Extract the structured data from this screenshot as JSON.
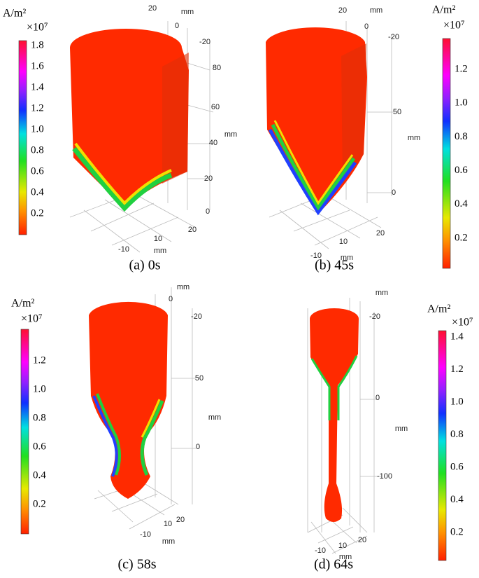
{
  "panels": [
    {
      "caption": "(a) 0s",
      "colorbar": {
        "unit": "A/m²",
        "exponent": "×10⁷",
        "ticks": [
          "1.8",
          "1.6",
          "1.4",
          "1.2",
          "1.0",
          "0.8",
          "0.6",
          "0.4",
          "0.2"
        ]
      },
      "axis_labels": [
        "20",
        "mm",
        "0",
        "-20",
        "80",
        "60",
        "mm",
        "40",
        "20",
        "0",
        "20",
        "10",
        "-10",
        "mm"
      ]
    },
    {
      "caption": "(b) 45s",
      "colorbar": {
        "unit": "A/m²",
        "exponent": "×10⁷",
        "ticks": [
          "1.2",
          "1.0",
          "0.8",
          "0.6",
          "0.4",
          "0.2"
        ]
      },
      "axis_labels": [
        "20",
        "mm",
        "0",
        "-20",
        "50",
        "mm",
        "0",
        "20",
        "10",
        "-10",
        "mm"
      ]
    },
    {
      "caption": "(c) 58s",
      "colorbar": {
        "unit": "A/m²",
        "exponent": "×10⁷",
        "ticks": [
          "1.2",
          "1.0",
          "0.8",
          "0.6",
          "0.4",
          "0.2"
        ]
      },
      "axis_labels": [
        "mm",
        "0",
        "-20",
        "50",
        "mm",
        "0",
        "20",
        "10",
        "-10",
        "mm"
      ]
    },
    {
      "caption": "(d) 64s",
      "colorbar": {
        "unit": "A/m²",
        "exponent": "×10⁷",
        "ticks": [
          "1.4",
          "1.2",
          "1.0",
          "0.8",
          "0.6",
          "0.4",
          "0.2"
        ]
      },
      "axis_labels": [
        "mm",
        "-20",
        "0",
        "mm",
        "-100",
        "20",
        "10",
        "-10",
        "mm"
      ]
    }
  ]
}
